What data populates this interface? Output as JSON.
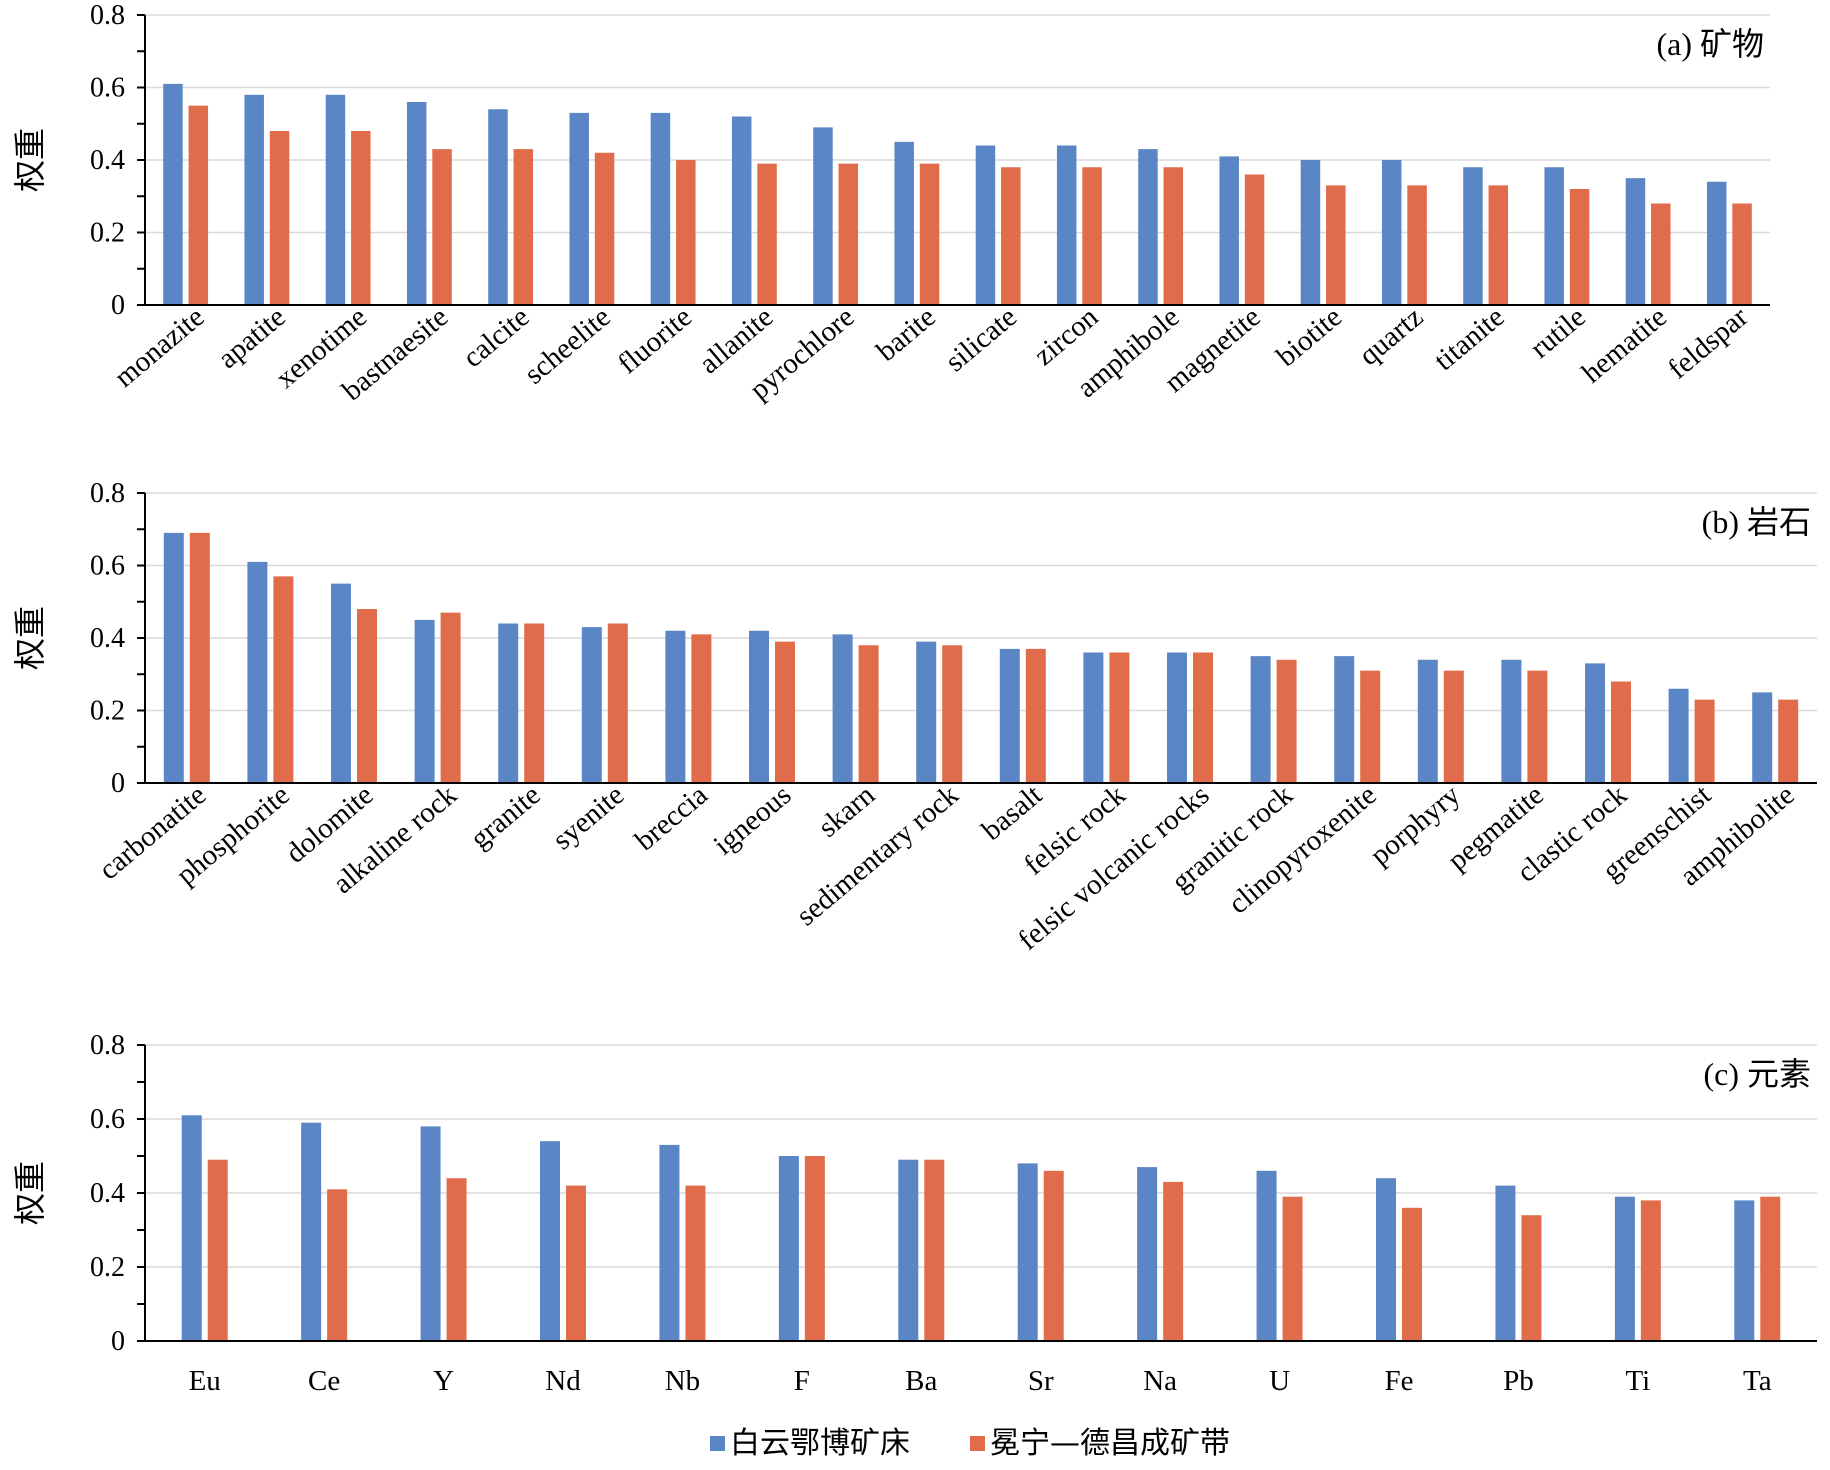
{
  "colors": {
    "series1": "#5b86c5",
    "series2": "#e06c4b",
    "grid": "#d9d9d9",
    "axis": "#000000"
  },
  "legend": {
    "items": [
      "白云鄂博矿床",
      "冕宁—德昌成矿带"
    ]
  },
  "chart_data": [
    {
      "type": "bar",
      "title": "(a) 矿物",
      "ylabel": "权重",
      "ylim": [
        0,
        0.8
      ],
      "yticks": [
        "0",
        "0.2",
        "0.4",
        "0.6",
        "0.8"
      ],
      "categories": [
        "monazite",
        "apatite",
        "xenotime",
        "bastnaesite",
        "calcite",
        "scheelite",
        "fluorite",
        "allanite",
        "pyrochlore",
        "barite",
        "silicate",
        "zircon",
        "amphibole",
        "magnetite",
        "biotite",
        "quartz",
        "titanite",
        "rutile",
        "hematite",
        "feldspar"
      ],
      "series": [
        {
          "name": "白云鄂博矿床",
          "values": [
            0.61,
            0.58,
            0.58,
            0.56,
            0.54,
            0.53,
            0.53,
            0.52,
            0.49,
            0.45,
            0.44,
            0.44,
            0.43,
            0.41,
            0.4,
            0.4,
            0.38,
            0.38,
            0.35,
            0.34
          ]
        },
        {
          "name": "冕宁—德昌成矿带",
          "values": [
            0.55,
            0.48,
            0.48,
            0.43,
            0.43,
            0.42,
            0.4,
            0.39,
            0.39,
            0.39,
            0.38,
            0.38,
            0.38,
            0.36,
            0.33,
            0.33,
            0.33,
            0.32,
            0.28,
            0.28
          ]
        }
      ]
    },
    {
      "type": "bar",
      "title": "(b) 岩石",
      "ylabel": "权重",
      "ylim": [
        0,
        0.8
      ],
      "yticks": [
        "0",
        "0.2",
        "0.4",
        "0.6",
        "0.8"
      ],
      "categories": [
        "carbonatite",
        "phosphorite",
        "dolomite",
        "alkaline rock",
        "granite",
        "syenite",
        "breccia",
        "igneous",
        "skarn",
        "sedimentary rock",
        "basalt",
        "felsic rock",
        "felsic volcanic rocks",
        "granitic rock",
        "clinopyroxenite",
        "porphyry",
        "pegmatite",
        "clastic rock",
        "greenschist",
        "amphibolite"
      ],
      "series": [
        {
          "name": "白云鄂博矿床",
          "values": [
            0.69,
            0.61,
            0.55,
            0.45,
            0.44,
            0.43,
            0.42,
            0.42,
            0.41,
            0.39,
            0.37,
            0.36,
            0.36,
            0.35,
            0.35,
            0.34,
            0.34,
            0.33,
            0.26,
            0.25
          ]
        },
        {
          "name": "冕宁—德昌成矿带",
          "values": [
            0.69,
            0.57,
            0.48,
            0.47,
            0.44,
            0.44,
            0.41,
            0.39,
            0.38,
            0.38,
            0.37,
            0.36,
            0.36,
            0.34,
            0.31,
            0.31,
            0.31,
            0.28,
            0.23,
            0.23
          ]
        }
      ]
    },
    {
      "type": "bar",
      "title": "(c) 元素",
      "ylabel": "权重",
      "ylim": [
        0,
        0.8
      ],
      "yticks": [
        "0",
        "0.2",
        "0.4",
        "0.6",
        "0.8"
      ],
      "categories": [
        "Eu",
        "Ce",
        "Y",
        "Nd",
        "Nb",
        "F",
        "Ba",
        "Sr",
        "Na",
        "U",
        "Fe",
        "Pb",
        "Ti",
        "Ta"
      ],
      "series": [
        {
          "name": "白云鄂博矿床",
          "values": [
            0.61,
            0.59,
            0.58,
            0.54,
            0.53,
            0.5,
            0.49,
            0.48,
            0.47,
            0.46,
            0.44,
            0.42,
            0.39,
            0.38
          ]
        },
        {
          "name": "冕宁—德昌成矿带",
          "values": [
            0.49,
            0.41,
            0.44,
            0.42,
            0.42,
            0.5,
            0.49,
            0.46,
            0.43,
            0.39,
            0.36,
            0.34,
            0.38,
            0.39
          ]
        }
      ]
    }
  ]
}
